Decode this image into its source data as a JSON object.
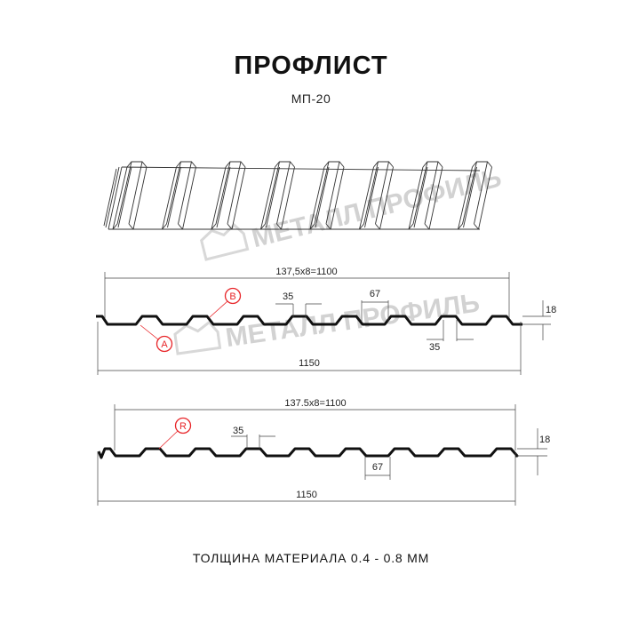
{
  "header": {
    "title": "ПРОФЛИСТ",
    "subtitle": "МП-20"
  },
  "watermark": {
    "text": "МЕТАЛЛ ПРОФИЛЬ",
    "color": "#d2d2d2"
  },
  "profile_a": {
    "pitch_label": "137,5x8=1100",
    "width_label": "1150",
    "crest_label": "35",
    "valley_label": "67",
    "crest_label_2": "35",
    "height_label": "18",
    "marker_a": "A",
    "marker_b": "B"
  },
  "profile_b": {
    "pitch_label": "137.5x8=1100",
    "width_label": "1150",
    "crest_label": "35",
    "valley_label": "67",
    "height_label": "18",
    "marker_r": "R"
  },
  "colors": {
    "line": "#111111",
    "marker": "#e8262a",
    "dimension": "#444444"
  },
  "footer": {
    "thickness": "ТОЛЩИНА МАТЕРИАЛА 0.4 - 0.8 ММ"
  }
}
